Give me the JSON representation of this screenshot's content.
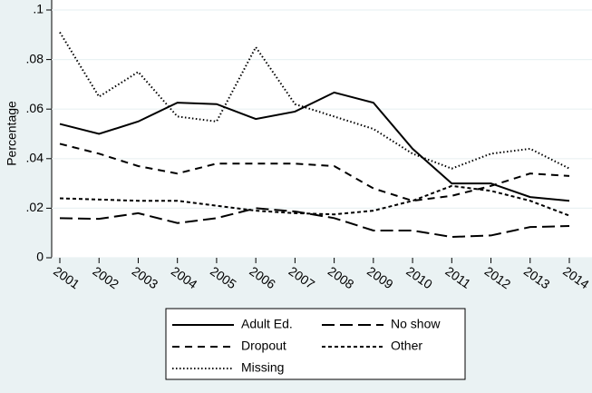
{
  "chart_data": {
    "type": "line",
    "y_label": "Percentage",
    "x": [
      2001,
      2002,
      2003,
      2004,
      2005,
      2006,
      2007,
      2008,
      2009,
      2010,
      2011,
      2012,
      2013,
      2014
    ],
    "xlim": [
      2001,
      2014
    ],
    "xticks": [
      2001,
      2002,
      2003,
      2004,
      2005,
      2006,
      2007,
      2008,
      2009,
      2010,
      2011,
      2012,
      2013,
      2014
    ],
    "ylim": [
      0,
      0.1
    ],
    "yticks": [
      0,
      {
        "value": 0.02,
        "label": ".02"
      },
      {
        "value": 0.04,
        "label": ".04"
      },
      {
        "value": 0.06,
        "label": ".06"
      },
      {
        "value": 0.08,
        "label": ".08"
      },
      {
        "value": 0.1,
        "label": ".1"
      }
    ],
    "grid": true,
    "legend": "bottom",
    "series": [
      {
        "name": "Adult Ed.",
        "color": "#000000",
        "dash": "solid",
        "values": [
          0.054,
          0.05,
          0.055,
          0.0626,
          0.062,
          0.056,
          0.059,
          0.0667,
          0.0626,
          0.044,
          0.03,
          0.03,
          0.0245,
          0.023
        ]
      },
      {
        "name": "No show",
        "color": "#000000",
        "dash": "longdash",
        "values": [
          0.016,
          0.0157,
          0.018,
          0.014,
          0.016,
          0.02,
          0.0187,
          0.016,
          0.011,
          0.011,
          0.0084,
          0.009,
          0.0124,
          0.0128
        ]
      },
      {
        "name": "Dropout",
        "color": "#000000",
        "dash": "dash",
        "values": [
          0.046,
          0.042,
          0.037,
          0.034,
          0.038,
          0.038,
          0.038,
          0.037,
          0.028,
          0.023,
          0.025,
          0.029,
          0.034,
          0.033
        ]
      },
      {
        "name": "Other",
        "color": "#000000",
        "dash": "shortdash",
        "values": [
          0.024,
          0.0235,
          0.023,
          0.023,
          0.021,
          0.019,
          0.018,
          0.0175,
          0.019,
          0.023,
          0.029,
          0.027,
          0.023,
          0.017
        ]
      },
      {
        "name": "Missing",
        "color": "#000000",
        "dash": "dot",
        "values": [
          0.091,
          0.065,
          0.075,
          0.057,
          0.055,
          0.085,
          0.062,
          0.057,
          0.052,
          0.042,
          0.036,
          0.042,
          0.044,
          0.036
        ]
      }
    ]
  }
}
